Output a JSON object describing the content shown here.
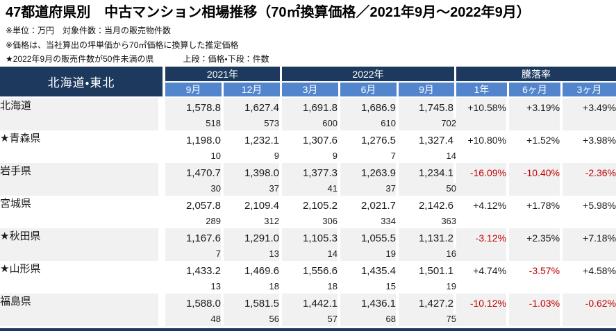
{
  "page": {
    "title": "47都道府県別　中古マンション相場推移（70㎡換算価格／2021年9月～2022年9月）",
    "note_unit": "※単位：万円　対象件数：当月の販売物件数",
    "note_price": "※価格は、当社算出の坪単価から70㎡価格に換算した推定価格",
    "note_star": "★2022年9月の販売件数が50件未満の県",
    "note_legend": "上段：価格・下段：件数"
  },
  "colors": {
    "header_dark": "#1D3A5E",
    "header_blue": "#5285CC",
    "row_shade": "#F1F1F1",
    "negative_red": "#C00000"
  },
  "table": {
    "region_label": "北海道・東北",
    "year_groups": [
      {
        "label": "2021年"
      },
      {
        "label": "2022年"
      },
      {
        "label": "騰落率"
      }
    ],
    "month_headers": [
      "9月",
      "12月",
      "3月",
      "6月",
      "9月"
    ],
    "rate_headers": [
      "1年",
      "6ヶ月",
      "3ヶ月"
    ],
    "rows": [
      {
        "name": "北海道",
        "prices": [
          "1,578.8",
          "1,627.4",
          "1,691.8",
          "1,686.9",
          "1,745.8"
        ],
        "counts": [
          "518",
          "573",
          "600",
          "610",
          "702"
        ],
        "rates": [
          "+10.58%",
          "+3.19%",
          "+3.49%"
        ]
      },
      {
        "name": "★青森県",
        "prices": [
          "1,198.0",
          "1,232.1",
          "1,307.6",
          "1,276.5",
          "1,327.4"
        ],
        "counts": [
          "10",
          "9",
          "9",
          "7",
          "14"
        ],
        "rates": [
          "+10.80%",
          "+1.52%",
          "+3.98%"
        ]
      },
      {
        "name": "岩手県",
        "prices": [
          "1,470.7",
          "1,398.0",
          "1,377.3",
          "1,263.9",
          "1,234.1"
        ],
        "counts": [
          "30",
          "37",
          "41",
          "37",
          "50"
        ],
        "rates": [
          "-16.09%",
          "-10.40%",
          "-2.36%"
        ]
      },
      {
        "name": "宮城県",
        "prices": [
          "2,057.8",
          "2,109.4",
          "2,105.2",
          "2,021.7",
          "2,142.6"
        ],
        "counts": [
          "289",
          "312",
          "306",
          "334",
          "363"
        ],
        "rates": [
          "+4.12%",
          "+1.78%",
          "+5.98%"
        ]
      },
      {
        "name": "★秋田県",
        "prices": [
          "1,167.6",
          "1,291.0",
          "1,105.3",
          "1,055.5",
          "1,131.2"
        ],
        "counts": [
          "7",
          "13",
          "14",
          "19",
          "16"
        ],
        "rates": [
          "-3.12%",
          "+2.35%",
          "+7.18%"
        ]
      },
      {
        "name": "★山形県",
        "prices": [
          "1,433.2",
          "1,469.6",
          "1,556.6",
          "1,435.4",
          "1,501.1"
        ],
        "counts": [
          "13",
          "18",
          "18",
          "15",
          "19"
        ],
        "rates": [
          "+4.74%",
          "-3.57%",
          "+4.58%"
        ]
      },
      {
        "name": "福島県",
        "prices": [
          "1,588.0",
          "1,581.5",
          "1,442.1",
          "1,436.1",
          "1,427.2"
        ],
        "counts": [
          "48",
          "56",
          "57",
          "68",
          "75"
        ],
        "rates": [
          "-10.12%",
          "-1.03%",
          "-0.62%"
        ]
      }
    ]
  }
}
